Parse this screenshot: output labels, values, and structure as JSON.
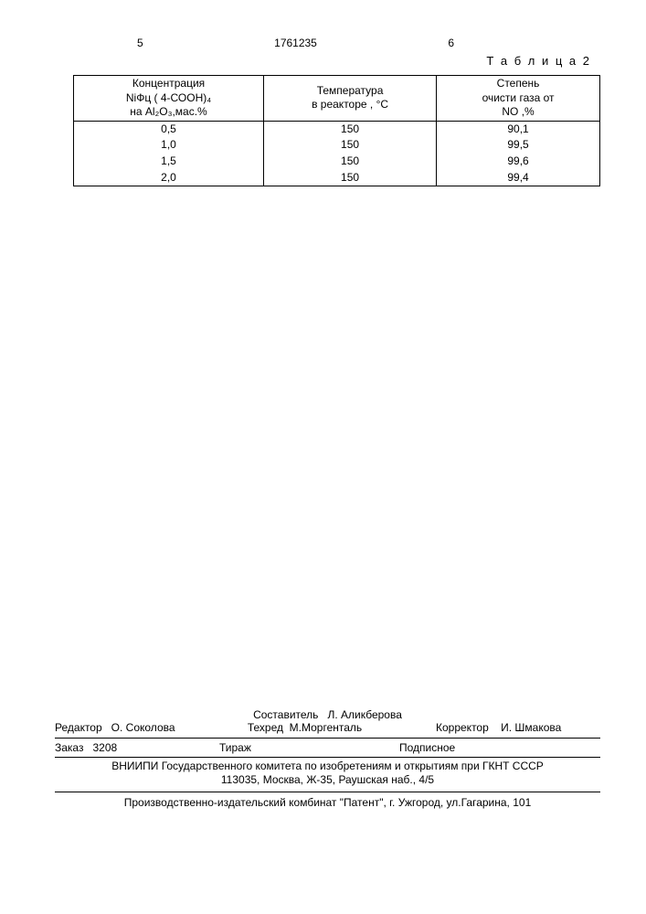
{
  "header": {
    "page_left": "5",
    "patent_number": "1761235",
    "page_right": "6"
  },
  "table": {
    "caption": "Т а б л и ц а 2",
    "columns": [
      {
        "line1": "Концентрация",
        "line2": "NiФц ( 4-СООН)₄",
        "line3": "на Al₂O₃,мас.%"
      },
      {
        "line1": "Температура",
        "line2": "в реакторе , °С",
        "line3": ""
      },
      {
        "line1": "Степень",
        "line2": "очисти газа от",
        "line3": "NO ,%"
      }
    ],
    "rows": [
      [
        "0,5",
        "150",
        "90,1"
      ],
      [
        "1,0",
        "150",
        "99,5"
      ],
      [
        "1,5",
        "150",
        "99,6"
      ],
      [
        "2,0",
        "150",
        "99,4"
      ]
    ]
  },
  "footer": {
    "compiler_label": "Составитель",
    "compiler_name": "Л. Аликберова",
    "editor_label": "Редактор",
    "editor_name": "О. Соколова",
    "techred_label": "Техред",
    "techred_name": "М.Моргенталь",
    "corrector_label": "Корректор",
    "corrector_name": "И. Шмакова",
    "order_label": "Заказ",
    "order_number": "3208",
    "tirage_label": "Тираж",
    "subscription_label": "Подписное",
    "org_line1": "ВНИИПИ Государственного комитета по изобретениям и открытиям при ГКНТ СССР",
    "org_line2": "113035, Москва, Ж-35, Раушская наб., 4/5",
    "printer": "Производственно-издательский комбинат \"Патент\", г. Ужгород, ул.Гагарина, 101"
  }
}
